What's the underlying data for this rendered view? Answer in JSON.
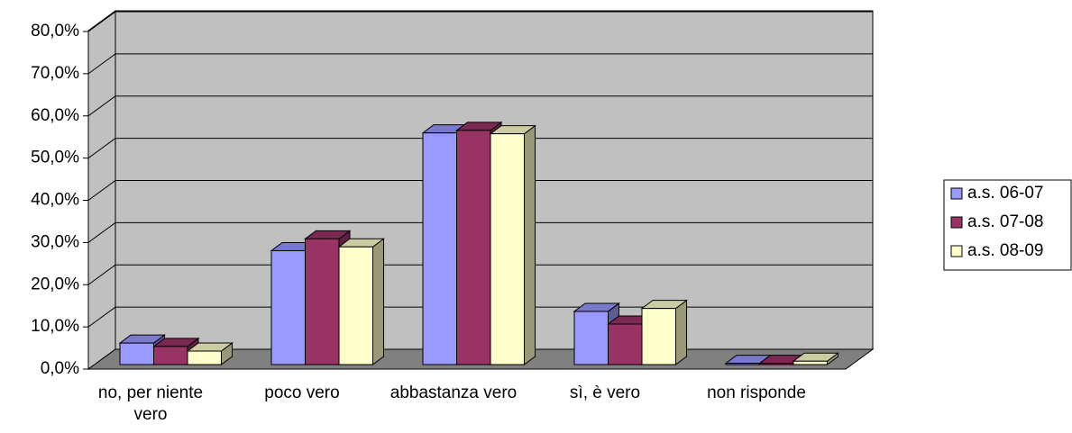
{
  "chart_data": {
    "type": "bar3d",
    "categories": [
      "no, per niente vero",
      "poco vero",
      "abbastanza vero",
      "sì, è vero",
      "non risponde"
    ],
    "series": [
      {
        "name": "a.s. 06-07",
        "color": "#9999ff",
        "values": [
          5.1,
          27.0,
          54.9,
          12.6,
          0.3
        ]
      },
      {
        "name": "a.s. 07-08",
        "color": "#993366",
        "values": [
          4.3,
          29.8,
          55.5,
          9.6,
          0.3
        ]
      },
      {
        "name": "a.s. 08-09",
        "color": "#ffffcc",
        "values": [
          3.2,
          27.9,
          54.7,
          13.3,
          0.8
        ]
      }
    ],
    "ylim": [
      0,
      80
    ],
    "yticks": [
      {
        "value": 0,
        "label": "0,0%"
      },
      {
        "value": 10,
        "label": "10,0%"
      },
      {
        "value": 20,
        "label": "20,0%"
      },
      {
        "value": 30,
        "label": "30,0%"
      },
      {
        "value": 40,
        "label": "40,0%"
      },
      {
        "value": 50,
        "label": "50,0%"
      },
      {
        "value": 60,
        "label": "60,0%"
      },
      {
        "value": 70,
        "label": "70,0%"
      },
      {
        "value": 80,
        "label": "80,0%"
      }
    ],
    "grid": true,
    "legend": "right"
  }
}
